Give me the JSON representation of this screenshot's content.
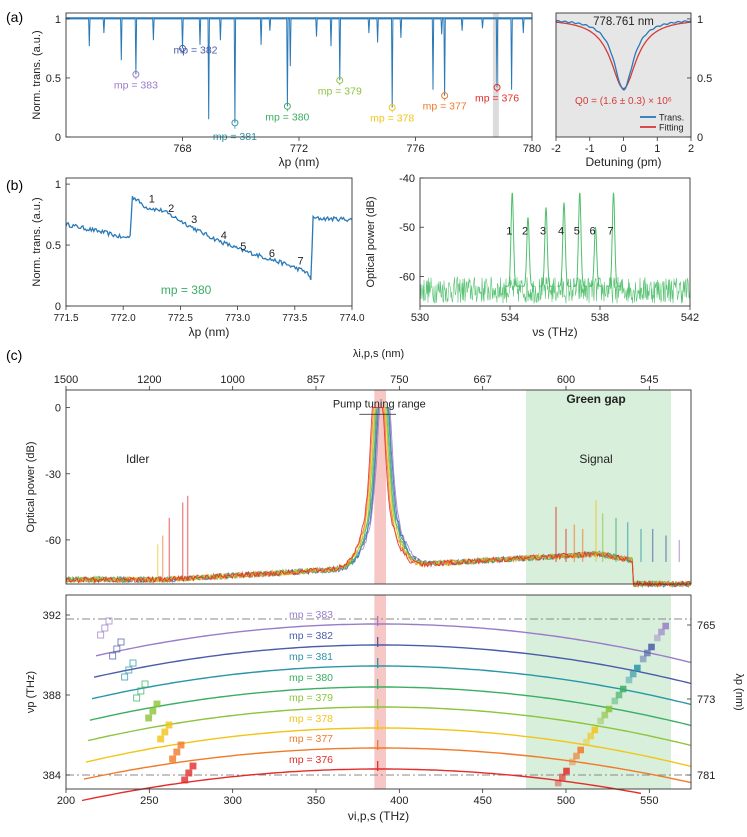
{
  "colors": {
    "blue": "#2a7ab8",
    "purple": "#9a7cc8",
    "navy": "#4a5ca8",
    "teal": "#2996a8",
    "green": "#3aae62",
    "lime": "#8cc43c",
    "yellow": "#f2c418",
    "orange": "#f07a2a",
    "red": "#e22d2a",
    "signalgreen": "#3cb85c",
    "shadegreen": "#d8efdc",
    "shadepink": "#f7c7c5",
    "fitred": "#d63a3a",
    "panelgray": "#e6e6e6",
    "axis": "#333333",
    "dash": "#888888"
  },
  "chart_data": [
    {
      "id": "a-left",
      "panel_label": "(a)",
      "type": "line",
      "xlabel": "λp (nm)",
      "ylabel": "Norm. trans. (a.u.)",
      "xlim": [
        764,
        780
      ],
      "ylim": [
        0,
        1.05
      ],
      "xticks": [
        768,
        772,
        776,
        780
      ],
      "yticks": [
        0,
        0.5,
        1
      ],
      "highlight_nm": 778.76,
      "dips": [
        {
          "x": 766.4,
          "depth": 0.47,
          "label": "mp = 383",
          "color": "purple"
        },
        {
          "x": 768.0,
          "depth": 0.25,
          "label": "mp = 382",
          "color": "navy"
        },
        {
          "x": 769.8,
          "depth": 0.88,
          "label": "mp = 381",
          "color": "teal"
        },
        {
          "x": 771.6,
          "depth": 0.74,
          "label": "mp = 380",
          "color": "green"
        },
        {
          "x": 773.4,
          "depth": 0.52,
          "label": "mp = 379",
          "color": "lime"
        },
        {
          "x": 775.2,
          "depth": 0.75,
          "label": "mp = 378",
          "color": "yellow"
        },
        {
          "x": 777.0,
          "depth": 0.65,
          "label": "mp = 377",
          "color": "orange"
        },
        {
          "x": 778.8,
          "depth": 0.58,
          "label": "mp = 376",
          "color": "red"
        }
      ],
      "minor_dips": [
        [
          764.8,
          0.23
        ],
        [
          765.3,
          0.12
        ],
        [
          765.9,
          0.35
        ],
        [
          767.0,
          0.18
        ],
        [
          768.6,
          0.22
        ],
        [
          768.9,
          0.85
        ],
        [
          769.3,
          0.18
        ],
        [
          770.7,
          0.22
        ],
        [
          771.0,
          0.1
        ],
        [
          771.7,
          0.4
        ],
        [
          772.6,
          0.15
        ],
        [
          773.1,
          0.23
        ],
        [
          774.4,
          0.12
        ],
        [
          774.7,
          0.2
        ],
        [
          775.5,
          0.16
        ],
        [
          776.6,
          0.6
        ],
        [
          776.9,
          0.13
        ],
        [
          777.6,
          0.1
        ],
        [
          778.3,
          0.08
        ],
        [
          779.3,
          0.6
        ],
        [
          779.7,
          0.12
        ]
      ]
    },
    {
      "id": "a-right",
      "type": "line",
      "title": "778.761 nm",
      "xlabel": "Detuning (pm)",
      "xlim": [
        -2,
        2
      ],
      "ylim": [
        0,
        1.05
      ],
      "xticks": [
        -2,
        -1,
        0,
        1,
        2
      ],
      "yticks": [
        0,
        0.5,
        1
      ],
      "annotation": "Q0 = (1.6 ± 0.3) × 10⁶",
      "dip_min": 0.4,
      "series": [
        {
          "name": "Trans.",
          "color": "blue"
        },
        {
          "name": "Fitting",
          "color": "fitred"
        }
      ]
    },
    {
      "id": "b-left",
      "panel_label": "(b)",
      "type": "line",
      "xlabel": "λp (nm)",
      "ylabel": "Norm. trans. (a.u.)",
      "xlim": [
        771.5,
        774.0
      ],
      "ylim": [
        0,
        1.05
      ],
      "xticks": [
        771.5,
        772.0,
        772.5,
        773.0,
        773.5,
        774.0
      ],
      "yticks": [
        0,
        0.5,
        1
      ],
      "annotation": "mp = 380",
      "x": [
        771.5,
        771.7,
        771.85,
        772.0,
        772.06,
        772.08,
        772.2,
        772.35,
        772.5,
        772.65,
        772.8,
        773.0,
        773.2,
        773.4,
        773.6,
        773.64,
        773.66,
        774.0
      ],
      "y": [
        0.67,
        0.63,
        0.6,
        0.56,
        0.57,
        0.9,
        0.81,
        0.78,
        0.7,
        0.62,
        0.55,
        0.47,
        0.41,
        0.35,
        0.28,
        0.22,
        0.72,
        0.71
      ],
      "point_labels": [
        {
          "x": 772.25,
          "y": 0.85,
          "text": "1"
        },
        {
          "x": 772.42,
          "y": 0.77,
          "text": "2"
        },
        {
          "x": 772.62,
          "y": 0.68,
          "text": "3"
        },
        {
          "x": 772.88,
          "y": 0.55,
          "text": "4"
        },
        {
          "x": 773.05,
          "y": 0.46,
          "text": "5"
        },
        {
          "x": 773.3,
          "y": 0.4,
          "text": "6"
        },
        {
          "x": 773.55,
          "y": 0.34,
          "text": "7"
        }
      ]
    },
    {
      "id": "b-right",
      "type": "line",
      "xlabel": "νs (THz)",
      "ylabel": "Optical power (dB)",
      "xlim": [
        530,
        542
      ],
      "ylim": [
        -66,
        -40
      ],
      "xticks": [
        530,
        534,
        538,
        542
      ],
      "yticks": [
        -40,
        -50,
        -60
      ],
      "peaks": [
        {
          "x": 534.1,
          "y": -43,
          "label": "1"
        },
        {
          "x": 534.8,
          "y": -48,
          "label": "2"
        },
        {
          "x": 535.6,
          "y": -46,
          "label": "3"
        },
        {
          "x": 536.4,
          "y": -45,
          "label": "4"
        },
        {
          "x": 537.1,
          "y": -43,
          "label": "5"
        },
        {
          "x": 537.8,
          "y": -50,
          "label": "6"
        },
        {
          "x": 538.6,
          "y": -43,
          "label": "7"
        }
      ]
    },
    {
      "id": "c-top",
      "panel_label": "(c)",
      "type": "line",
      "ylabel": "Optical power (dB)",
      "top_axis_label": "λi,p,s (nm)",
      "xlim": [
        200,
        575
      ],
      "ylim": [
        -80,
        8
      ],
      "yticks": [
        0,
        -30,
        -60
      ],
      "top_ticks": [
        {
          "x": 200,
          "label": "1500"
        },
        {
          "x": 250,
          "label": "1200"
        },
        {
          "x": 300,
          "label": "1000"
        },
        {
          "x": 350,
          "label": "857"
        },
        {
          "x": 400,
          "label": "750"
        },
        {
          "x": 450,
          "label": "667"
        },
        {
          "x": 500,
          "label": "600"
        },
        {
          "x": 550,
          "label": "545"
        }
      ],
      "pump_range": [
        385,
        392
      ],
      "green_gap": [
        476,
        563
      ],
      "labels": {
        "pump": "Pump tuning range",
        "gap": "Green gap",
        "idler": "Idler",
        "signal": "Signal"
      }
    },
    {
      "id": "c-bottom",
      "type": "line",
      "xlabel": "νi,p,s (THz)",
      "ylabel": "νp (THz)",
      "y2label": "λp (nm)",
      "xlim": [
        200,
        575
      ],
      "ylim": [
        383.3,
        393
      ],
      "xticks": [
        200,
        250,
        300,
        350,
        400,
        450,
        500,
        550
      ],
      "yticks": [
        384,
        388,
        392
      ],
      "y2ticks": [
        {
          "v": 391.5,
          "label": "765"
        },
        {
          "v": 387.8,
          "label": "773"
        },
        {
          "v": 384.0,
          "label": "781"
        }
      ],
      "dashed_lines": [
        384.0,
        391.8
      ],
      "series": [
        {
          "name": "mp = 383",
          "color": "purple",
          "base": 391.55
        },
        {
          "name": "mp = 382",
          "color": "navy",
          "base": 390.5
        },
        {
          "name": "mp = 381",
          "color": "teal",
          "base": 389.45
        },
        {
          "name": "mp = 380",
          "color": "green",
          "base": 388.4
        },
        {
          "name": "mp = 379",
          "color": "lime",
          "base": 387.4
        },
        {
          "name": "mp = 378",
          "color": "yellow",
          "base": 386.35
        },
        {
          "name": "mp = 377",
          "color": "orange",
          "base": 385.35
        },
        {
          "name": "mp = 376",
          "color": "red",
          "base": 384.3
        }
      ]
    }
  ]
}
